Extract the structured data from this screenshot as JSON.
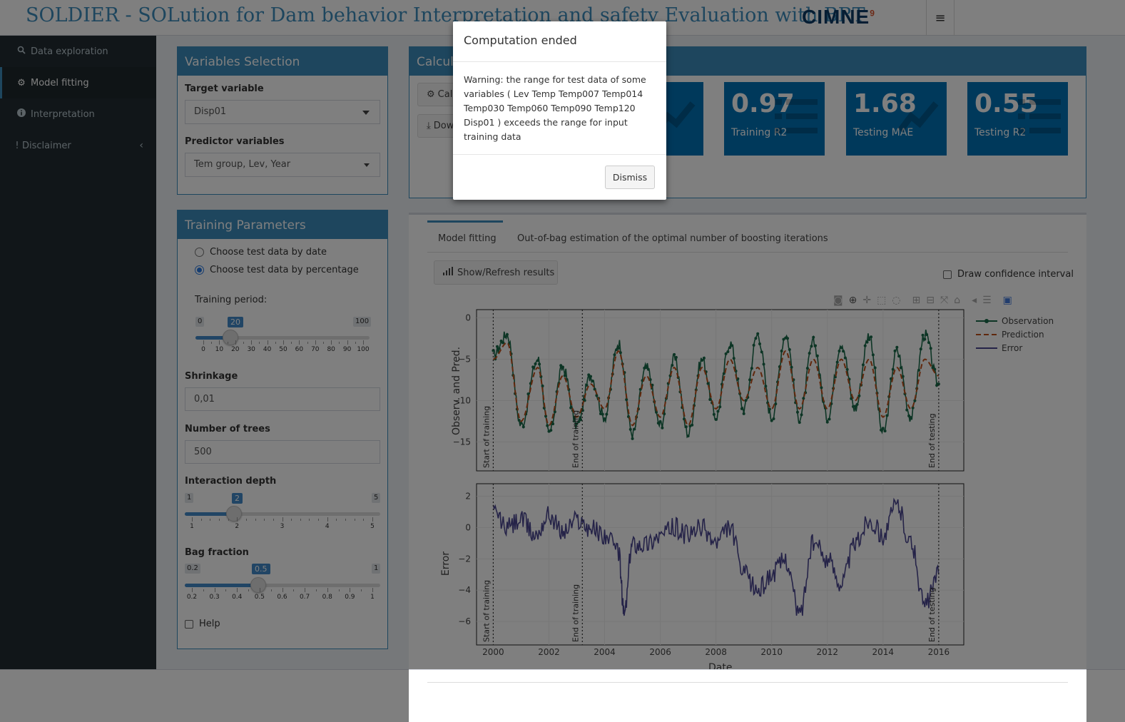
{
  "header": {
    "title": "SOLDIER - SOLution for Dam behavior Interpretation and safety Evaluation with BRT",
    "logo": "CIMNE",
    "logo_mark": "9"
  },
  "sidebar": {
    "items": [
      {
        "label": "Data exploration",
        "icon": "search-icon"
      },
      {
        "label": "Model fitting",
        "icon": "gear-icon"
      },
      {
        "label": "Interpretation",
        "icon": "info-icon"
      },
      {
        "label": "Disclaimer",
        "icon": "exclamation-icon"
      }
    ],
    "active": "Model fitting"
  },
  "variables": {
    "title": "Variables Selection",
    "target_label": "Target variable",
    "target_value": "Disp01",
    "predictor_label": "Predictor variables",
    "predictor_value": "Tem group, Lev, Year"
  },
  "training": {
    "title": "Training Parameters",
    "radio_date": "Choose test data by date",
    "radio_pct": "Choose test data by percentage",
    "period_label": "Training period:",
    "period": {
      "min": "0",
      "max": "100",
      "value": "20",
      "value_fraction": 0.2,
      "ticks": [
        "0",
        "10",
        "20",
        "30",
        "40",
        "50",
        "60",
        "70",
        "80",
        "90",
        "100"
      ]
    },
    "shrinkage_label": "Shrinkage",
    "shrinkage_value": "0,01",
    "trees_label": "Number of trees",
    "trees_value": "500",
    "depth_label": "Interaction depth",
    "depth": {
      "min": "1",
      "max": "5",
      "value": "2",
      "value_fraction": 0.25,
      "ticks": [
        "1",
        "2",
        "3",
        "4",
        "5"
      ]
    },
    "bag_label": "Bag fraction",
    "bag": {
      "min": "0.2",
      "max": "1",
      "value": "0.5",
      "value_fraction": 0.375,
      "ticks": [
        "0.2",
        "0.3",
        "0.4",
        "0.5",
        "0.6",
        "0.7",
        "0.8",
        "0.9",
        "1"
      ]
    },
    "help_label": "Help"
  },
  "calc": {
    "title": "Calcula",
    "calc_button": "Calc",
    "download_button": "Dow",
    "values": [
      {
        "value": "0.97",
        "caption": "Training R2",
        "icon": "list-icon"
      },
      {
        "value": "1.68",
        "caption": "Testing MAE",
        "icon": "line-chart-icon"
      },
      {
        "value": "0.55",
        "caption": "Testing R2",
        "icon": "list-icon"
      }
    ]
  },
  "tabs": [
    "Model fitting",
    "Out-of-bag estimation of the optimal number of boosting iterations"
  ],
  "plot": {
    "show_button": "Show/Refresh results",
    "confidence_label": "Draw confidence interval",
    "legend": [
      "Observation",
      "Prediction",
      "Error"
    ],
    "colors": {
      "observation": "#1a6b4a",
      "prediction": "#c0501a",
      "error": "#4b4690"
    },
    "top_ylabel": "Observ. and Pred.",
    "bottom_ylabel": "Error",
    "xlabel": "Date",
    "xticks": [
      "2000",
      "2002",
      "2004",
      "2006",
      "2008",
      "2010",
      "2012",
      "2014",
      "2016"
    ],
    "top_yticks": [
      "0",
      "−5",
      "−10",
      "−15"
    ],
    "bottom_yticks": [
      "2",
      "0",
      "−2",
      "−4",
      "−6"
    ],
    "vlines": {
      "start": "Start of training",
      "end_train": "End of training",
      "end_test": "End of testing"
    }
  },
  "modal": {
    "title": "Computation ended",
    "body": "Warning: the range for test data of some variables ( Lev Temp Temp007 Temp014 Temp030 Temp060 Temp090 Temp120 Disp01 ) exceeds the range for input training data",
    "button": "Dismiss"
  },
  "chart_data": {
    "type": "line",
    "xlabel": "Date",
    "x_range": [
      1999.4,
      2016.9
    ],
    "panels": [
      {
        "ylabel": "Observ. and Pred.",
        "ylim": [
          -18.5,
          1
        ],
        "series": [
          {
            "name": "Observation",
            "x": [
              2000.0,
              2000.5,
              2001.0,
              2001.6,
              2002.0,
              2002.5,
              2003.0,
              2003.5,
              2004.0,
              2004.5,
              2005.0,
              2005.5,
              2006.0,
              2006.5,
              2007.0,
              2007.5,
              2008.0,
              2008.5,
              2009.0,
              2009.5,
              2010.0,
              2010.5,
              2011.0,
              2011.5,
              2012.0,
              2012.5,
              2013.0,
              2013.5,
              2014.0,
              2014.5,
              2015.0,
              2015.5,
              2016.0
            ],
            "values": [
              -4.5,
              -2,
              -13,
              -5,
              -14,
              -6,
              -13,
              -7,
              -12,
              -3,
              -14,
              -6,
              -13,
              -5,
              -14,
              -5,
              -12,
              -3,
              -11,
              -2,
              -12,
              -2,
              -12,
              -3,
              -12,
              -3,
              -11,
              -2,
              -14,
              -4,
              -12,
              -2,
              -8
            ]
          },
          {
            "name": "Prediction",
            "x": [
              2000.0,
              2000.5,
              2001.0,
              2001.6,
              2002.0,
              2002.5,
              2003.0,
              2003.5,
              2004.0,
              2004.5,
              2005.0,
              2005.5,
              2006.0,
              2006.5,
              2007.0,
              2007.5,
              2008.0,
              2008.5,
              2009.0,
              2009.5,
              2010.0,
              2010.5,
              2011.0,
              2011.5,
              2012.0,
              2012.5,
              2013.0,
              2013.5,
              2014.0,
              2014.5,
              2015.0,
              2015.5,
              2016.0
            ],
            "values": [
              -5,
              -3,
              -12.5,
              -6,
              -13,
              -7,
              -12,
              -8,
              -11,
              -4,
              -13,
              -7,
              -12,
              -6,
              -13,
              -6,
              -11,
              -5,
              -10,
              -6,
              -11,
              -4,
              -11,
              -5,
              -11,
              -5,
              -10,
              -5,
              -12,
              -6,
              -11,
              -5,
              -7
            ]
          }
        ]
      },
      {
        "ylabel": "Error",
        "ylim": [
          -7.5,
          2.8
        ],
        "series": [
          {
            "name": "Error",
            "x": [
              2000.0,
              2000.5,
              2001.0,
              2001.5,
              2002.0,
              2002.5,
              2003.0,
              2003.5,
              2004.0,
              2004.5,
              2004.7,
              2005.0,
              2005.5,
              2006.0,
              2006.5,
              2007.0,
              2007.5,
              2008.0,
              2008.5,
              2009.0,
              2009.5,
              2010.0,
              2010.5,
              2011.0,
              2011.5,
              2012.0,
              2012.5,
              2013.0,
              2013.5,
              2014.0,
              2014.5,
              2015.0,
              2015.5,
              2016.0
            ],
            "values": [
              1,
              0,
              0.5,
              -0.5,
              0.8,
              -0.3,
              0.5,
              0,
              -0.5,
              -1.5,
              -5.5,
              -1,
              -1,
              -0.5,
              0,
              -0.5,
              0,
              -1,
              0,
              -3,
              -4,
              -3,
              -2,
              -5.5,
              -1,
              -2,
              -3.5,
              -1,
              0.5,
              -0.5,
              1.5,
              -1,
              -5,
              -3
            ]
          }
        ]
      }
    ],
    "vlines_x": [
      2000.0,
      2003.2,
      2016.0
    ]
  }
}
